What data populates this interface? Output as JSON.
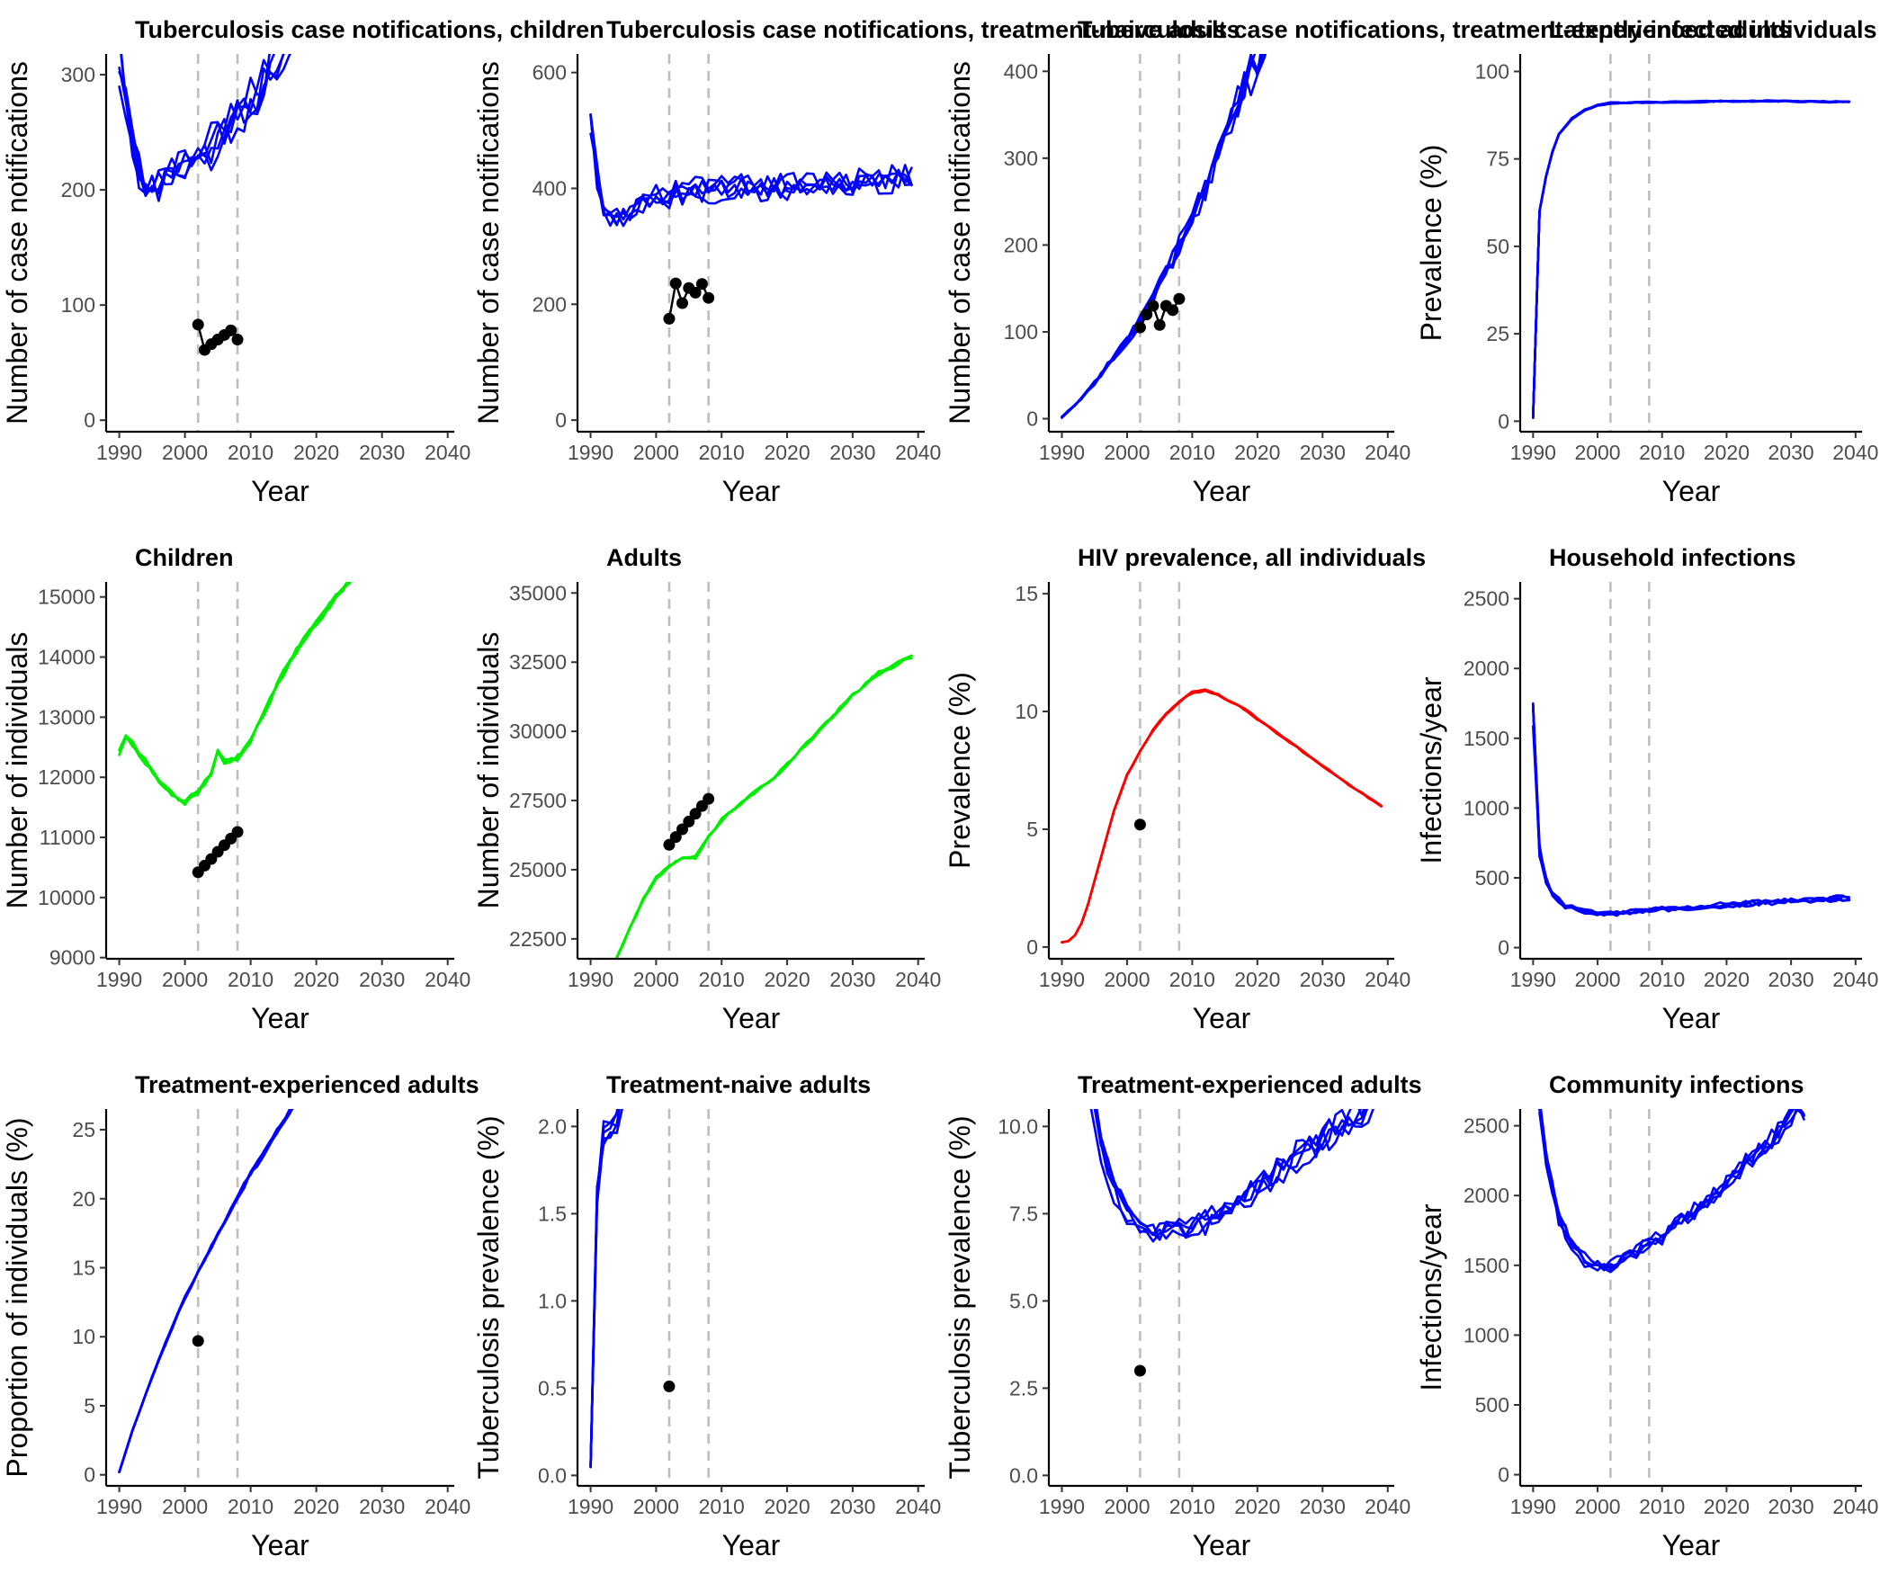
{
  "chart_data": [
    {
      "type": "line",
      "title": "Tuberculosis case notifications, children",
      "xlabel": "Year",
      "ylabel": "Number of case notifications",
      "xlim": [
        1988,
        2041
      ],
      "ylim": [
        -10,
        318
      ],
      "xticks": [
        1990,
        2000,
        2010,
        2020,
        2030,
        2040
      ],
      "yticks": [
        0,
        100,
        200,
        300
      ],
      "vlines": [
        2002,
        2008
      ],
      "color": "#0000ff",
      "series_count": 5,
      "series_trend": [
        [
          1990,
          310
        ],
        [
          1992,
          238
        ],
        [
          1994,
          200
        ],
        [
          1996,
          205
        ],
        [
          1998,
          218
        ],
        [
          2000,
          222
        ],
        [
          2002,
          228
        ],
        [
          2004,
          238
        ],
        [
          2006,
          250
        ],
        [
          2008,
          262
        ],
        [
          2010,
          272
        ],
        [
          2012,
          292
        ],
        [
          2014,
          315
        ],
        [
          2016,
          335
        ],
        [
          2018,
          360
        ]
      ],
      "noise": 0.07,
      "observed": {
        "x": [
          2002,
          2003,
          2004,
          2005,
          2006,
          2007,
          2008
        ],
        "y": [
          83,
          61,
          66,
          70,
          74,
          78,
          70
        ]
      }
    },
    {
      "type": "line",
      "title": "Tuberculosis case notifications, treatment-naive adults",
      "xlabel": "Year",
      "ylabel": "Number of case notifications",
      "xlim": [
        1988,
        2041
      ],
      "ylim": [
        -20,
        632
      ],
      "xticks": [
        1990,
        2000,
        2010,
        2020,
        2030,
        2040
      ],
      "yticks": [
        0,
        200,
        400,
        600
      ],
      "vlines": [
        2002,
        2008
      ],
      "color": "#0000ff",
      "series_count": 5,
      "series_trend": [
        [
          1990,
          510
        ],
        [
          1991,
          420
        ],
        [
          1992,
          360
        ],
        [
          1994,
          350
        ],
        [
          1996,
          360
        ],
        [
          1998,
          375
        ],
        [
          2000,
          385
        ],
        [
          2002,
          390
        ],
        [
          2006,
          398
        ],
        [
          2010,
          400
        ],
        [
          2020,
          405
        ],
        [
          2030,
          410
        ],
        [
          2039,
          420
        ]
      ],
      "noise": 0.05,
      "observed": {
        "x": [
          2002,
          2003,
          2004,
          2005,
          2006,
          2007,
          2008
        ],
        "y": [
          175,
          236,
          202,
          228,
          220,
          235,
          211
        ]
      }
    },
    {
      "type": "line",
      "title": "Tuberculosis case notifications, treatment-experienced adults",
      "xlabel": "Year",
      "ylabel": "Number of case notifications",
      "xlim": [
        1988,
        2041
      ],
      "ylim": [
        -15,
        420
      ],
      "xticks": [
        1990,
        2000,
        2010,
        2020,
        2030,
        2040
      ],
      "yticks": [
        0,
        100,
        200,
        300,
        400
      ],
      "vlines": [
        2002,
        2008
      ],
      "color": "#0000ff",
      "series_count": 5,
      "series_trend": [
        [
          1990,
          2
        ],
        [
          1992,
          15
        ],
        [
          1994,
          32
        ],
        [
          1996,
          50
        ],
        [
          1998,
          70
        ],
        [
          2000,
          90
        ],
        [
          2002,
          110
        ],
        [
          2004,
          140
        ],
        [
          2006,
          170
        ],
        [
          2008,
          195
        ],
        [
          2010,
          225
        ],
        [
          2012,
          260
        ],
        [
          2014,
          300
        ],
        [
          2016,
          340
        ],
        [
          2018,
          380
        ],
        [
          2020,
          410
        ],
        [
          2022,
          440
        ]
      ],
      "noise": 0.06,
      "observed": {
        "x": [
          2002,
          2003,
          2004,
          2005,
          2006,
          2007,
          2008
        ],
        "y": [
          105,
          120,
          130,
          108,
          130,
          125,
          138
        ]
      }
    },
    {
      "type": "line",
      "title": "Latently-infected individuals",
      "xlabel": "Year",
      "ylabel": "Prevalence (%)",
      "xlim": [
        1988,
        2041
      ],
      "ylim": [
        -3,
        105
      ],
      "xticks": [
        1990,
        2000,
        2010,
        2020,
        2030,
        2040
      ],
      "yticks": [
        0,
        25,
        50,
        75,
        100
      ],
      "vlines": [
        2002,
        2008
      ],
      "color": "#0000ff",
      "series_count": 5,
      "series_trend": [
        [
          1990,
          1
        ],
        [
          1990.5,
          30
        ],
        [
          1991,
          60
        ],
        [
          1992,
          70
        ],
        [
          1993,
          77
        ],
        [
          1994,
          82
        ],
        [
          1996,
          86.5
        ],
        [
          1998,
          89
        ],
        [
          2000,
          90.3
        ],
        [
          2002,
          91
        ],
        [
          2010,
          91.2
        ],
        [
          2020,
          91.5
        ],
        [
          2030,
          91.5
        ],
        [
          2039,
          91.3
        ]
      ],
      "noise": 0.002,
      "observed": {
        "x": [],
        "y": []
      }
    },
    {
      "type": "line",
      "title": "Children",
      "xlabel": "Year",
      "ylabel": "Number of individuals",
      "xlim": [
        1988,
        2041
      ],
      "ylim": [
        8980,
        15250
      ],
      "xticks": [
        1990,
        2000,
        2010,
        2020,
        2030,
        2040
      ],
      "yticks": [
        9000,
        10000,
        11000,
        12000,
        13000,
        14000,
        15000
      ],
      "vlines": [
        2002,
        2008
      ],
      "color": "#00ee00",
      "series_count": 4,
      "series_trend": [
        [
          1990,
          12400
        ],
        [
          1991,
          12700
        ],
        [
          1992,
          12550
        ],
        [
          1994,
          12250
        ],
        [
          1996,
          11950
        ],
        [
          1998,
          11700
        ],
        [
          2000,
          11580
        ],
        [
          2002,
          11750
        ],
        [
          2004,
          12050
        ],
        [
          2005,
          12450
        ],
        [
          2006,
          12250
        ],
        [
          2008,
          12300
        ],
        [
          2010,
          12600
        ],
        [
          2012,
          13050
        ],
        [
          2014,
          13500
        ],
        [
          2016,
          13950
        ],
        [
          2018,
          14250
        ],
        [
          2020,
          14550
        ],
        [
          2022,
          14850
        ],
        [
          2024,
          15100
        ],
        [
          2026,
          15400
        ],
        [
          2028,
          15600
        ]
      ],
      "noise": 0.004,
      "observed": {
        "x": [
          2002,
          2003,
          2004,
          2005,
          2006,
          2007,
          2008
        ],
        "y": [
          10420,
          10530,
          10640,
          10760,
          10870,
          10980,
          11090
        ]
      }
    },
    {
      "type": "line",
      "title": "Adults",
      "xlabel": "Year",
      "ylabel": "Number of individuals",
      "xlim": [
        1988,
        2041
      ],
      "ylim": [
        21780,
        35400
      ],
      "xticks": [
        1990,
        2000,
        2010,
        2020,
        2030,
        2040
      ],
      "yticks": [
        22500,
        25000,
        27500,
        30000,
        32500,
        35000
      ],
      "vlines": [
        2002,
        2008
      ],
      "color": "#00ee00",
      "series_count": 4,
      "series_trend": [
        [
          1994,
          21800
        ],
        [
          1996,
          22900
        ],
        [
          1998,
          23900
        ],
        [
          2000,
          24700
        ],
        [
          2002,
          25100
        ],
        [
          2004,
          25400
        ],
        [
          2006,
          25450
        ],
        [
          2008,
          26200
        ],
        [
          2010,
          26800
        ],
        [
          2014,
          27600
        ],
        [
          2018,
          28300
        ],
        [
          2022,
          29300
        ],
        [
          2026,
          30300
        ],
        [
          2030,
          31300
        ],
        [
          2034,
          32100
        ],
        [
          2039,
          32700
        ]
      ],
      "noise": 0.002,
      "observed": {
        "x": [
          2002,
          2003,
          2004,
          2005,
          2006,
          2007,
          2008
        ],
        "y": [
          25900,
          26180,
          26460,
          26740,
          27020,
          27300,
          27560
        ]
      }
    },
    {
      "type": "line",
      "title": "HIV prevalence, all individuals",
      "xlabel": "Year",
      "ylabel": "Prevalence (%)",
      "xlim": [
        1988,
        2041
      ],
      "ylim": [
        -0.5,
        15.5
      ],
      "xticks": [
        1990,
        2000,
        2010,
        2020,
        2030,
        2040
      ],
      "yticks": [
        0,
        5,
        10,
        15
      ],
      "vlines": [
        2002,
        2008
      ],
      "color": "#ff0000",
      "series_count": 4,
      "series_trend": [
        [
          1990,
          0.2
        ],
        [
          1991,
          0.25
        ],
        [
          1992,
          0.5
        ],
        [
          1993,
          1.0
        ],
        [
          1994,
          1.8
        ],
        [
          1996,
          3.8
        ],
        [
          1998,
          5.8
        ],
        [
          2000,
          7.3
        ],
        [
          2002,
          8.3
        ],
        [
          2004,
          9.2
        ],
        [
          2006,
          9.9
        ],
        [
          2008,
          10.4
        ],
        [
          2010,
          10.8
        ],
        [
          2012,
          10.9
        ],
        [
          2014,
          10.7
        ],
        [
          2018,
          10.1
        ],
        [
          2022,
          9.3
        ],
        [
          2026,
          8.5
        ],
        [
          2030,
          7.7
        ],
        [
          2034,
          6.9
        ],
        [
          2039,
          6.0
        ]
      ],
      "noise": 0.004,
      "observed": {
        "x": [
          2002
        ],
        "y": [
          5.2
        ]
      }
    },
    {
      "type": "line",
      "title": "Household infections",
      "xlabel": "Year",
      "ylabel": "Infections/year",
      "xlim": [
        1988,
        2041
      ],
      "ylim": [
        -80,
        2620
      ],
      "xticks": [
        1990,
        2000,
        2010,
        2020,
        2030,
        2040
      ],
      "yticks": [
        0,
        500,
        1000,
        1500,
        2000,
        2500
      ],
      "vlines": [
        2002,
        2008
      ],
      "color": "#0000ff",
      "series_count": 5,
      "series_trend": [
        [
          1990,
          1700
        ],
        [
          1991,
          700
        ],
        [
          1992,
          480
        ],
        [
          1993,
          370
        ],
        [
          1995,
          300
        ],
        [
          1997,
          265
        ],
        [
          2000,
          245
        ],
        [
          2002,
          240
        ],
        [
          2005,
          255
        ],
        [
          2010,
          275
        ],
        [
          2015,
          290
        ],
        [
          2020,
          305
        ],
        [
          2025,
          320
        ],
        [
          2030,
          335
        ],
        [
          2035,
          345
        ],
        [
          2039,
          355
        ]
      ],
      "noise": 0.06,
      "observed": {
        "x": [],
        "y": []
      }
    },
    {
      "type": "line",
      "title": "Treatment-experienced adults",
      "xlabel": "Year",
      "ylabel": "Proportion of individuals (%)",
      "xlim": [
        1988,
        2041
      ],
      "ylim": [
        -0.8,
        26.5
      ],
      "xticks": [
        1990,
        2000,
        2010,
        2020,
        2030,
        2040
      ],
      "yticks": [
        0,
        5,
        10,
        15,
        20,
        25
      ],
      "vlines": [
        2002,
        2008
      ],
      "color": "#0000ff",
      "series_count": 5,
      "series_trend": [
        [
          1990,
          0.2
        ],
        [
          1992,
          3.2
        ],
        [
          1994,
          5.8
        ],
        [
          1996,
          8.3
        ],
        [
          1998,
          10.6
        ],
        [
          2000,
          12.8
        ],
        [
          2002,
          14.7
        ],
        [
          2004,
          16.5
        ],
        [
          2006,
          18.3
        ],
        [
          2008,
          20.1
        ],
        [
          2010,
          21.8
        ],
        [
          2012,
          23.3
        ],
        [
          2014,
          24.8
        ],
        [
          2016,
          26.3
        ],
        [
          2017,
          27.0
        ]
      ],
      "noise": 0.008,
      "observed": {
        "x": [
          2002
        ],
        "y": [
          9.7
        ]
      }
    },
    {
      "type": "line",
      "title": "Treatment-naive adults",
      "xlabel": "Year",
      "ylabel": "Tuberculosis prevalence (%)",
      "xlim": [
        1988,
        2041
      ],
      "ylim": [
        -0.06,
        2.1
      ],
      "xticks": [
        1990,
        2000,
        2010,
        2020,
        2030,
        2040
      ],
      "yticks": [
        0.0,
        0.5,
        1.0,
        1.5,
        2.0
      ],
      "vlines": [
        2002,
        2008
      ],
      "color": "#0000ff",
      "series_count": 5,
      "series_trend": [
        [
          1990,
          0.05
        ],
        [
          1990.5,
          0.9
        ],
        [
          1991,
          1.6
        ],
        [
          1992,
          1.9
        ],
        [
          1993,
          1.95
        ],
        [
          1994,
          2.05
        ],
        [
          1995,
          2.2
        ]
      ],
      "noise": 0.05,
      "observed": {
        "x": [
          2002
        ],
        "y": [
          0.51
        ]
      }
    },
    {
      "type": "line",
      "title": "Treatment-experienced adults",
      "xlabel": "Year",
      "ylabel": "Tuberculosis prevalence (%)",
      "xlim": [
        1988,
        2041
      ],
      "ylim": [
        -0.3,
        10.5
      ],
      "xticks": [
        1990,
        2000,
        2010,
        2020,
        2030,
        2040
      ],
      "yticks": [
        0.0,
        2.5,
        5.0,
        7.5,
        10.0
      ],
      "vlines": [
        2002,
        2008
      ],
      "color": "#0000ff",
      "series_count": 5,
      "series_trend": [
        [
          1994,
          11.5
        ],
        [
          1996,
          9.4
        ],
        [
          1998,
          8.2
        ],
        [
          2000,
          7.5
        ],
        [
          2002,
          7.0
        ],
        [
          2004,
          6.9
        ],
        [
          2006,
          6.9
        ],
        [
          2008,
          7.0
        ],
        [
          2010,
          7.1
        ],
        [
          2014,
          7.4
        ],
        [
          2018,
          7.9
        ],
        [
          2022,
          8.5
        ],
        [
          2026,
          9.1
        ],
        [
          2030,
          9.6
        ],
        [
          2034,
          10.1
        ],
        [
          2038,
          10.6
        ]
      ],
      "noise": 0.04,
      "observed": {
        "x": [
          2002
        ],
        "y": [
          3.0
        ]
      }
    },
    {
      "type": "line",
      "title": "Community infections",
      "xlabel": "Year",
      "ylabel": "Infections/year",
      "xlim": [
        1988,
        2041
      ],
      "ylim": [
        -80,
        2620
      ],
      "xticks": [
        1990,
        2000,
        2010,
        2020,
        2030,
        2040
      ],
      "yticks": [
        0,
        500,
        1000,
        1500,
        2000,
        2500
      ],
      "vlines": [
        2002,
        2008
      ],
      "color": "#0000ff",
      "series_count": 5,
      "series_trend": [
        [
          1991,
          2650
        ],
        [
          1992,
          2300
        ],
        [
          1994,
          1850
        ],
        [
          1996,
          1650
        ],
        [
          1998,
          1550
        ],
        [
          2000,
          1510
        ],
        [
          2002,
          1500
        ],
        [
          2004,
          1550
        ],
        [
          2006,
          1610
        ],
        [
          2008,
          1660
        ],
        [
          2010,
          1720
        ],
        [
          2014,
          1860
        ],
        [
          2018,
          2020
        ],
        [
          2022,
          2200
        ],
        [
          2026,
          2380
        ],
        [
          2030,
          2560
        ],
        [
          2032,
          2650
        ]
      ],
      "noise": 0.03,
      "observed": {
        "x": [],
        "y": []
      }
    }
  ]
}
